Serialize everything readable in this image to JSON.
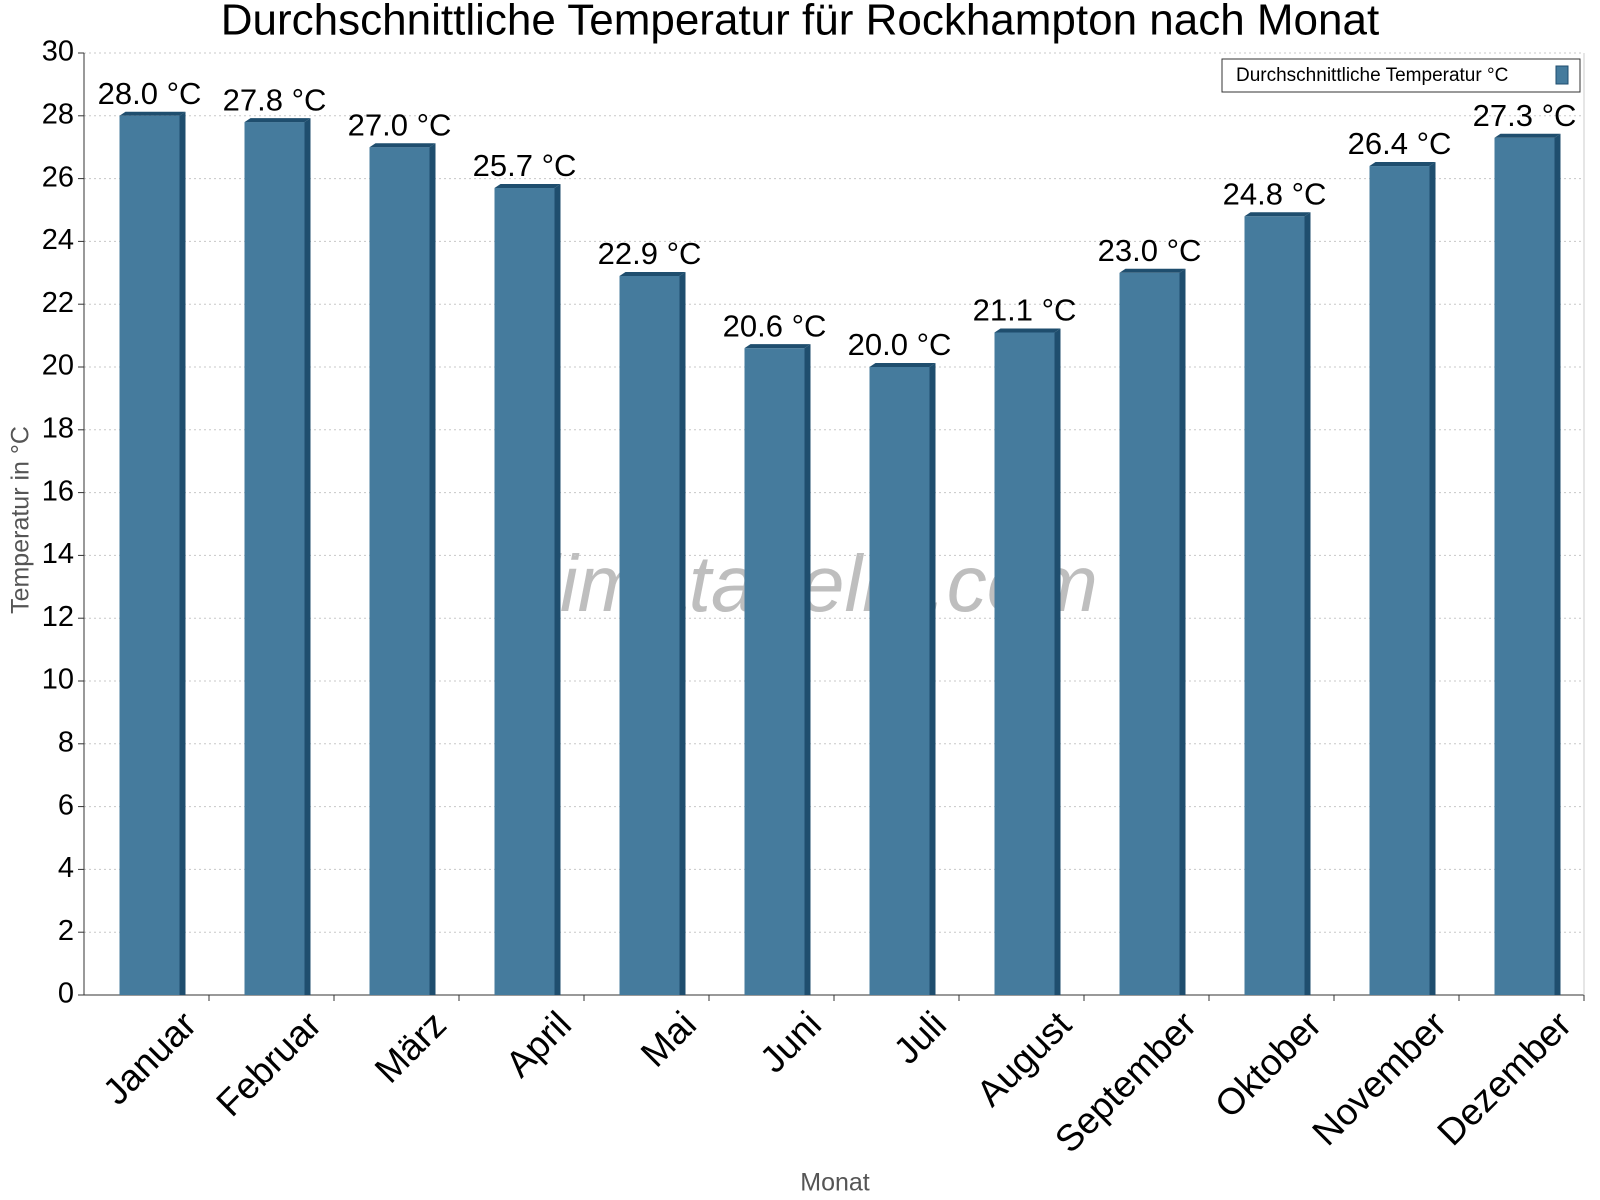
{
  "chart_data": {
    "type": "bar",
    "title": "Durchschnittliche Temperatur für Rockhampton nach Monat",
    "x_label": "Monat",
    "y_label": "Temperatur in °C",
    "watermark": "klimatabelle.com",
    "categories": [
      "Januar",
      "Februar",
      "März",
      "April",
      "Mai",
      "Juni",
      "Juli",
      "August",
      "September",
      "Oktober",
      "November",
      "Dezember"
    ],
    "series": [
      {
        "name": "Durchschnittliche Temperatur °C",
        "color": "#457b9d",
        "values": [
          28.0,
          27.8,
          27.0,
          25.7,
          22.9,
          20.6,
          20.0,
          21.1,
          23.0,
          24.8,
          26.4,
          27.3
        ],
        "value_labels": [
          "28.0 °C",
          "27.8 °C",
          "27.0 °C",
          "25.7 °C",
          "22.9 °C",
          "20.6 °C",
          "20.0 °C",
          "21.1 °C",
          "23.0 °C",
          "24.8 °C",
          "26.4 °C",
          "27.3 °C"
        ]
      }
    ],
    "ylim": [
      0,
      30
    ],
    "yticks": [
      0,
      2,
      4,
      6,
      8,
      10,
      12,
      14,
      16,
      18,
      20,
      22,
      24,
      26,
      28,
      30
    ],
    "grid": true,
    "legend": "top-right"
  }
}
